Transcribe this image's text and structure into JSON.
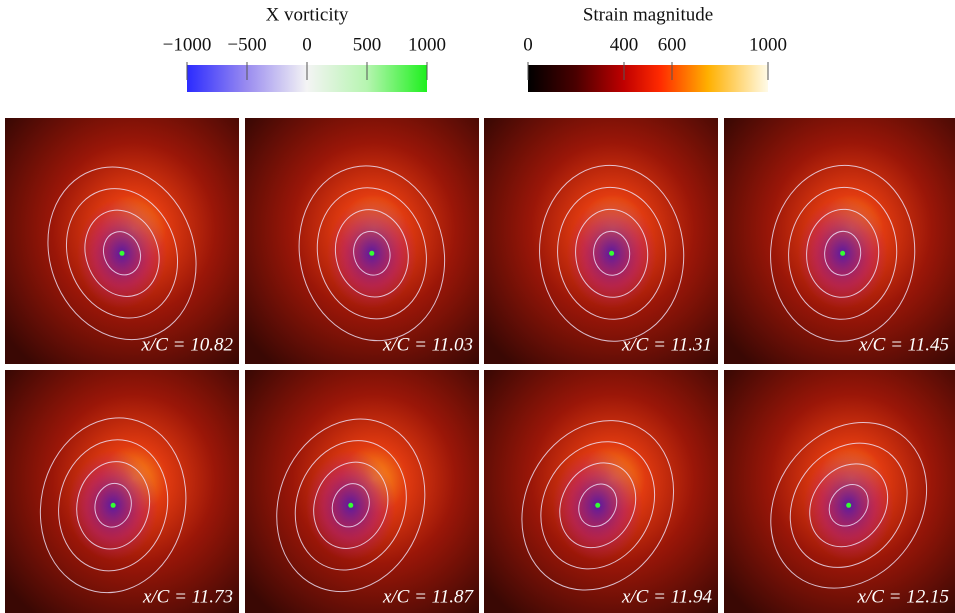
{
  "colorbars": [
    {
      "title": "X vorticity",
      "range": [
        -1000,
        1000
      ],
      "ticks": [
        {
          "value": -1000,
          "label": "−1000"
        },
        {
          "value": -500,
          "label": "−500"
        },
        0,
        500,
        1000
      ]
    },
    {
      "title": "Strain magnitude",
      "range": [
        0,
        1000
      ],
      "ticks": [
        0,
        400,
        600,
        1000
      ]
    }
  ],
  "panels": [
    {
      "label": "x/C = 10.82"
    },
    {
      "label": "x/C = 11.03"
    },
    {
      "label": "x/C = 11.31"
    },
    {
      "label": "x/C = 11.45"
    },
    {
      "label": "x/C = 11.73"
    },
    {
      "label": "x/C = 11.87"
    },
    {
      "label": "x/C = 11.94"
    },
    {
      "label": "x/C = 12.15"
    }
  ]
}
